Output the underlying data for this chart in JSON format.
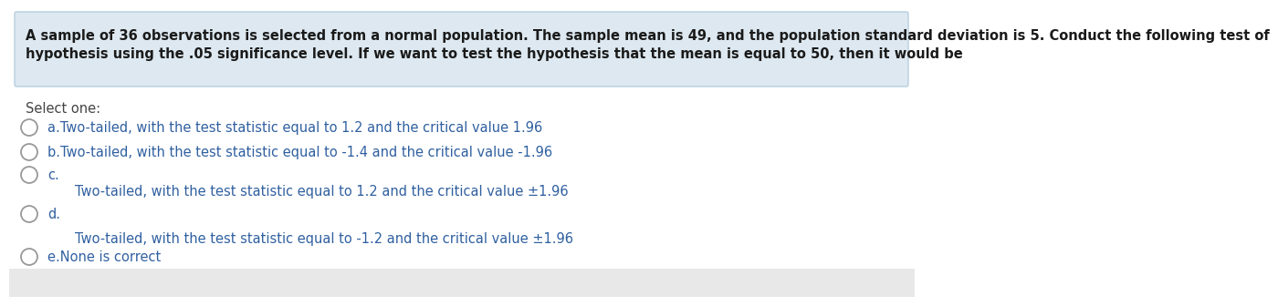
{
  "question_line1": "A sample of 36 observations is selected from a normal population. The sample mean is 49, and the population standard deviation is 5. Conduct the following test of",
  "question_line2": "hypothesis using the .05 significance level. If we want to test the hypothesis that the mean is equal to 50, then it would be",
  "select_one": "Select one:",
  "options": [
    {
      "label": "a.",
      "text": "Two-tailed, with the test statistic equal to 1.2 and the critical value 1.96",
      "inline": true
    },
    {
      "label": "b.",
      "text": "Two-tailed, with the test statistic equal to -1.4 and the critical value -1.96",
      "inline": true
    },
    {
      "label": "c.",
      "text": "Two-tailed, with the test statistic equal to 1.2 and the critical value ±1.96",
      "inline": false
    },
    {
      "label": "d.",
      "text": "Two-tailed, with the test statistic equal to -1.2 and the critical value ±1.96",
      "inline": false
    },
    {
      "label": "e.",
      "text": "None is correct",
      "inline": true
    }
  ],
  "question_bg": "#dde8f0",
  "question_border": "#b8cfe0",
  "bg_color": "#ffffff",
  "bottom_bg": "#e8e8e8",
  "text_color": "#3060a0",
  "question_text_color": "#1a1a1a",
  "select_color": "#444444",
  "font_size": 10.5,
  "question_font_size": 10.5,
  "fig_width": 9.92,
  "fig_height": 3.16
}
